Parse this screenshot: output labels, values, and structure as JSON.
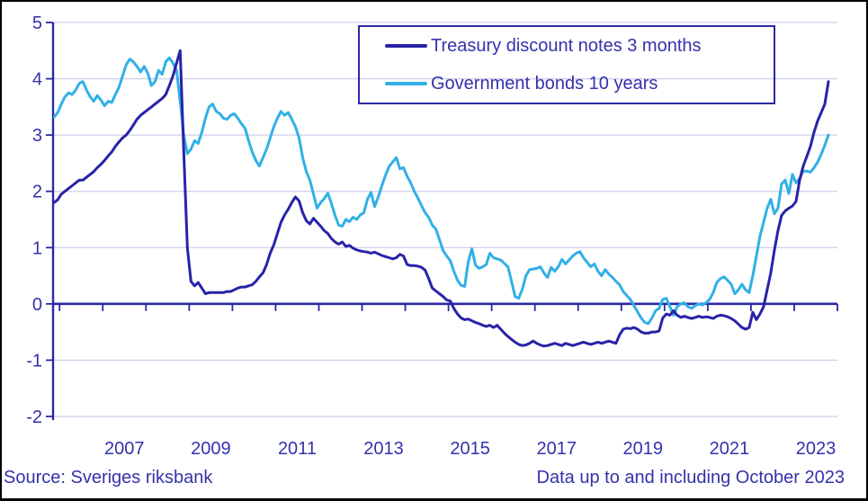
{
  "page": {
    "background": "#ffffff",
    "frame_color": "#000000"
  },
  "footer": {
    "source": "Source: Sveriges riksbank",
    "note": "Data up to and including October 2023"
  },
  "chart_data": {
    "type": "line",
    "title": "",
    "x_start": "2005-11",
    "x_end": "2023-10",
    "frequency": "monthly",
    "x_domain": [
      2005.85,
      2024.0
    ],
    "y_domain": [
      -2,
      5
    ],
    "y_ticks": [
      -2,
      -1,
      0,
      1,
      2,
      3,
      4,
      5
    ],
    "x_tick_years": [
      2006,
      2007,
      2008,
      2009,
      2010,
      2011,
      2012,
      2013,
      2014,
      2015,
      2016,
      2017,
      2018,
      2019,
      2020,
      2021,
      2022,
      2023,
      2024
    ],
    "x_label_years": [
      2007,
      2009,
      2011,
      2013,
      2015,
      2017,
      2019,
      2021,
      2023
    ],
    "grid": true,
    "legend_position": "top-right",
    "colors": {
      "grid": "#cfcfeb",
      "axis": "#2b28a6",
      "text": "#3432aa"
    },
    "series": [
      {
        "name": "Treasury discount notes 3 months",
        "color": "#2823a8",
        "values": [
          1.8,
          1.85,
          1.95,
          2.0,
          2.05,
          2.1,
          2.15,
          2.2,
          2.2,
          2.25,
          2.3,
          2.35,
          2.42,
          2.48,
          2.55,
          2.63,
          2.7,
          2.8,
          2.88,
          2.95,
          3.0,
          3.08,
          3.18,
          3.28,
          3.35,
          3.4,
          3.45,
          3.5,
          3.55,
          3.6,
          3.65,
          3.72,
          3.88,
          4.05,
          4.28,
          4.5,
          2.7,
          1.0,
          0.4,
          0.32,
          0.38,
          0.28,
          0.18,
          0.2,
          0.2,
          0.2,
          0.2,
          0.2,
          0.22,
          0.22,
          0.25,
          0.28,
          0.3,
          0.3,
          0.32,
          0.34,
          0.4,
          0.48,
          0.55,
          0.7,
          0.9,
          1.05,
          1.25,
          1.45,
          1.58,
          1.68,
          1.8,
          1.9,
          1.83,
          1.62,
          1.48,
          1.42,
          1.52,
          1.45,
          1.38,
          1.3,
          1.25,
          1.16,
          1.1,
          1.06,
          1.1,
          1.02,
          1.04,
          0.99,
          0.96,
          0.94,
          0.93,
          0.92,
          0.9,
          0.92,
          0.89,
          0.86,
          0.84,
          0.82,
          0.8,
          0.82,
          0.88,
          0.85,
          0.7,
          0.68,
          0.68,
          0.67,
          0.65,
          0.6,
          0.45,
          0.28,
          0.23,
          0.18,
          0.13,
          0.07,
          0.05,
          -0.08,
          -0.18,
          -0.25,
          -0.28,
          -0.27,
          -0.3,
          -0.33,
          -0.35,
          -0.38,
          -0.4,
          -0.38,
          -0.42,
          -0.38,
          -0.45,
          -0.52,
          -0.58,
          -0.63,
          -0.68,
          -0.72,
          -0.74,
          -0.73,
          -0.7,
          -0.66,
          -0.7,
          -0.73,
          -0.75,
          -0.74,
          -0.72,
          -0.7,
          -0.72,
          -0.74,
          -0.7,
          -0.72,
          -0.74,
          -0.72,
          -0.7,
          -0.68,
          -0.7,
          -0.72,
          -0.7,
          -0.68,
          -0.7,
          -0.68,
          -0.66,
          -0.68,
          -0.7,
          -0.55,
          -0.45,
          -0.43,
          -0.44,
          -0.42,
          -0.45,
          -0.5,
          -0.52,
          -0.52,
          -0.5,
          -0.5,
          -0.48,
          -0.25,
          -0.18,
          -0.2,
          -0.12,
          -0.2,
          -0.24,
          -0.22,
          -0.24,
          -0.26,
          -0.24,
          -0.22,
          -0.24,
          -0.23,
          -0.24,
          -0.26,
          -0.22,
          -0.2,
          -0.21,
          -0.23,
          -0.26,
          -0.3,
          -0.36,
          -0.42,
          -0.45,
          -0.42,
          -0.15,
          -0.28,
          -0.18,
          -0.05,
          0.25,
          0.55,
          0.95,
          1.3,
          1.57,
          1.65,
          1.7,
          1.74,
          1.82,
          2.2,
          2.45,
          2.62,
          2.8,
          3.05,
          3.25,
          3.4,
          3.55,
          3.95
        ]
      },
      {
        "name": "Government bonds 10 years",
        "color": "#31b0e6",
        "values": [
          3.32,
          3.4,
          3.55,
          3.68,
          3.75,
          3.72,
          3.8,
          3.92,
          3.95,
          3.8,
          3.68,
          3.6,
          3.7,
          3.62,
          3.52,
          3.6,
          3.58,
          3.72,
          3.85,
          4.05,
          4.25,
          4.35,
          4.3,
          4.22,
          4.12,
          4.22,
          4.1,
          3.88,
          3.95,
          4.15,
          4.08,
          4.3,
          4.37,
          4.28,
          4.15,
          3.6,
          3.0,
          2.67,
          2.75,
          2.9,
          2.85,
          3.05,
          3.3,
          3.5,
          3.55,
          3.42,
          3.38,
          3.3,
          3.28,
          3.35,
          3.38,
          3.3,
          3.2,
          3.12,
          2.9,
          2.7,
          2.55,
          2.45,
          2.6,
          2.75,
          2.95,
          3.15,
          3.3,
          3.42,
          3.35,
          3.4,
          3.28,
          3.15,
          2.95,
          2.6,
          2.35,
          2.2,
          1.95,
          1.7,
          1.8,
          1.87,
          1.97,
          1.78,
          1.57,
          1.4,
          1.38,
          1.5,
          1.46,
          1.54,
          1.5,
          1.58,
          1.62,
          1.86,
          1.98,
          1.73,
          1.9,
          2.1,
          2.28,
          2.44,
          2.52,
          2.6,
          2.4,
          2.42,
          2.27,
          2.15,
          2.0,
          1.88,
          1.75,
          1.62,
          1.54,
          1.4,
          1.33,
          1.14,
          0.95,
          0.85,
          0.77,
          0.58,
          0.42,
          0.33,
          0.31,
          0.75,
          0.98,
          0.69,
          0.63,
          0.66,
          0.7,
          0.9,
          0.82,
          0.8,
          0.78,
          0.72,
          0.66,
          0.4,
          0.13,
          0.1,
          0.26,
          0.5,
          0.61,
          0.62,
          0.63,
          0.66,
          0.55,
          0.47,
          0.65,
          0.58,
          0.66,
          0.79,
          0.71,
          0.78,
          0.85,
          0.9,
          0.93,
          0.82,
          0.74,
          0.66,
          0.71,
          0.58,
          0.5,
          0.61,
          0.53,
          0.47,
          0.4,
          0.34,
          0.22,
          0.15,
          0.08,
          -0.03,
          -0.14,
          -0.25,
          -0.33,
          -0.35,
          -0.25,
          -0.12,
          -0.08,
          0.08,
          0.1,
          -0.05,
          -0.2,
          -0.05,
          0.0,
          0.02,
          -0.05,
          -0.08,
          -0.03,
          0.0,
          -0.02,
          0.02,
          0.08,
          0.2,
          0.38,
          0.45,
          0.48,
          0.42,
          0.35,
          0.18,
          0.25,
          0.35,
          0.25,
          0.2,
          0.5,
          0.85,
          1.2,
          1.45,
          1.7,
          1.86,
          1.6,
          1.7,
          2.13,
          2.2,
          1.96,
          2.3,
          2.15,
          2.23,
          2.36,
          2.36,
          2.34,
          2.42,
          2.52,
          2.66,
          2.82,
          3.0
        ]
      }
    ]
  }
}
